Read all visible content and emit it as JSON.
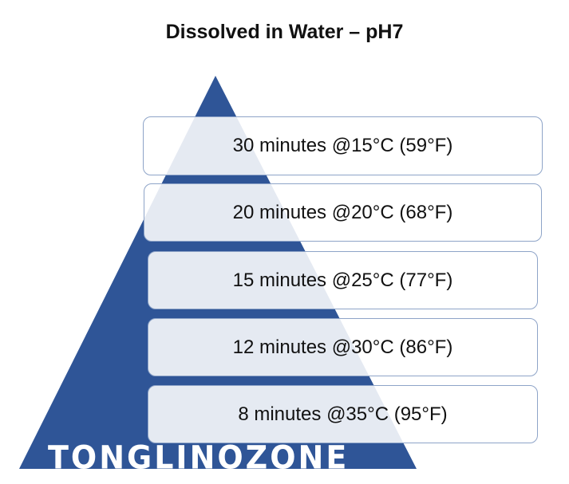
{
  "title": "Dissolved in Water – pH7",
  "colors": {
    "pyramid": "#2f5597",
    "box_border": "#8ea4c8"
  },
  "levels": [
    {
      "label": "30 minutes @15°C (59°F)"
    },
    {
      "label": "20 minutes @20°C (68°F)"
    },
    {
      "label": "15 minutes @25°C (77°F)"
    },
    {
      "label": "12 minutes @30°C (86°F)"
    },
    {
      "label": "8 minutes @35°C (95°F)"
    }
  ],
  "watermark": "TONGLINOZONE"
}
